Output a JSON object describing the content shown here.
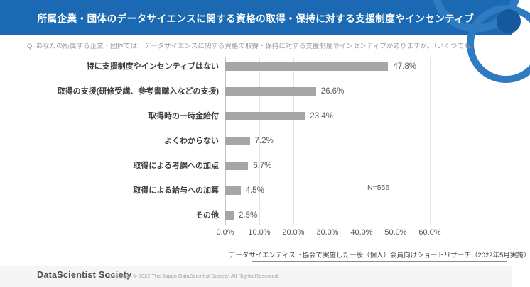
{
  "header": {
    "title": "所属企業・団体のデータサイエンスに関する資格の取得・保持に対する支援制度やインセンティブ",
    "bg_color": "#1a69b2",
    "deco_color": "#2e7bc1"
  },
  "question": "Q. あなたの所属する企業・団体では、データサイエンスに関する資格の取得・保持に対する支援制度やインセンティブがありますか。（いくつでも）",
  "chart_data": {
    "type": "bar",
    "orientation": "horizontal",
    "categories": [
      "特に支援制度やインセンティブはない",
      "取得の支援(研修受講、参考書購入などの支援)",
      "取得時の一時金給付",
      "よくわからない",
      "取得による考課への加点",
      "取得による給与への加算",
      "その他"
    ],
    "values": [
      47.8,
      26.6,
      23.4,
      7.2,
      6.7,
      4.5,
      2.5
    ],
    "value_labels": [
      "47.8%",
      "26.6%",
      "23.4%",
      "7.2%",
      "6.7%",
      "4.5%",
      "2.5%"
    ],
    "x_ticks": [
      "0.0%",
      "10.0%",
      "20.0%",
      "30.0%",
      "40.0%",
      "50.0%",
      "60.0%"
    ],
    "xlim": [
      0,
      60
    ],
    "grid": true,
    "bar_color": "#a6a6a6",
    "sample_size_label": "N=556"
  },
  "note": "データサイエンティスト協会で実施した一般（個人）会員向けショートリサーチ（2022年5月実施）",
  "footer": {
    "logo_text": "DataScientist Society",
    "copyright": "Copyright © 2022  The Japan DataScientist Society. All Rights Reserved."
  }
}
